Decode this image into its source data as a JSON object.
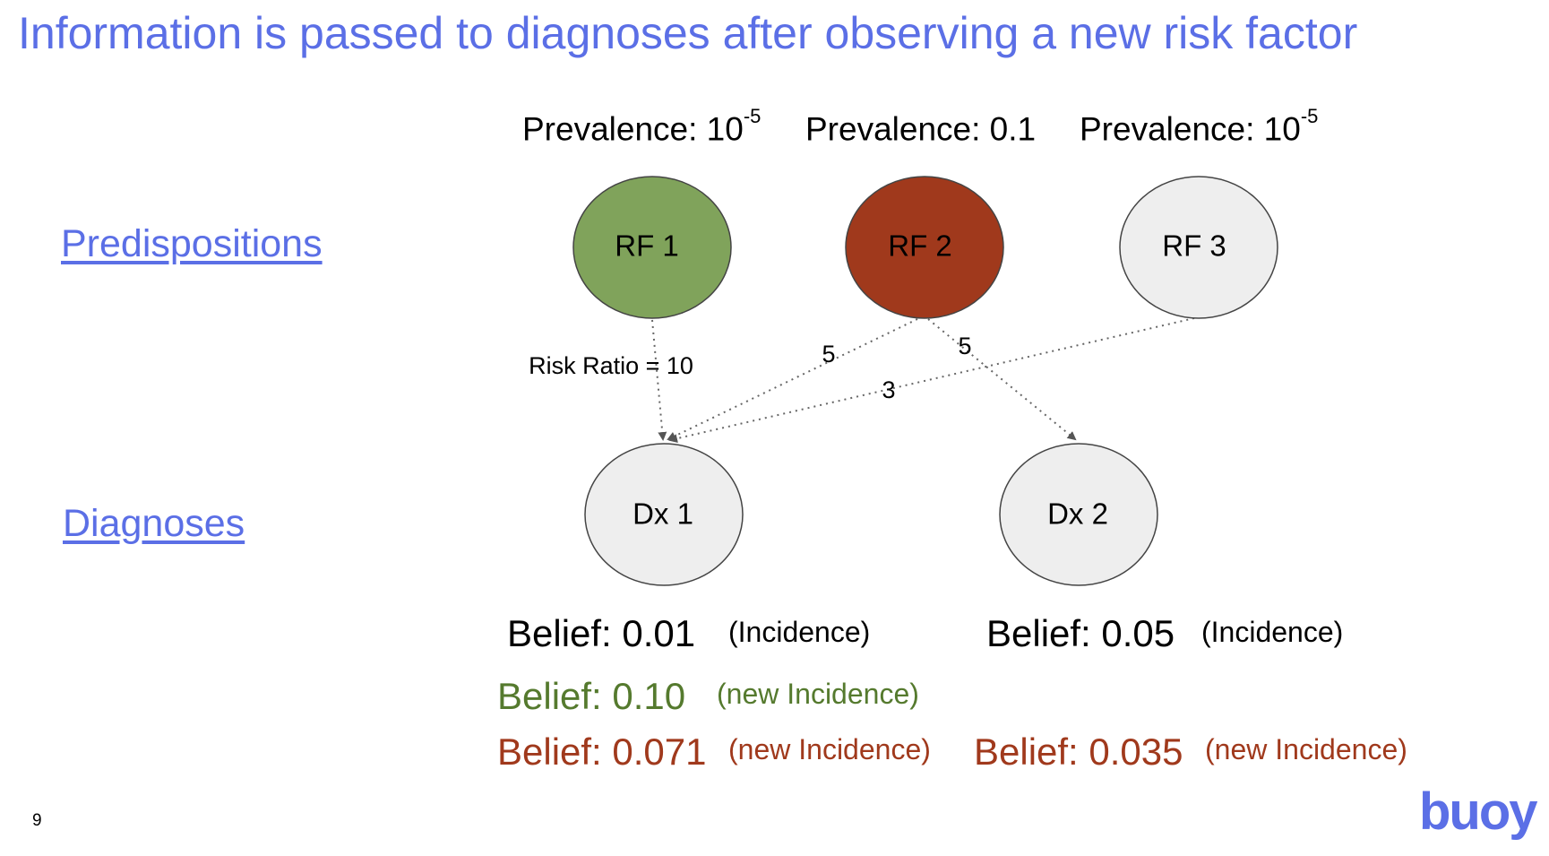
{
  "title": "Information is passed to diagnoses after observing a new risk factor",
  "sections": {
    "predispositions": "Predispositions",
    "diagnoses": "Diagnoses"
  },
  "prevalence": [
    {
      "label": "Prevalence: 10",
      "sup": "-5"
    },
    {
      "label": "Prevalence: 0.1",
      "sup": ""
    },
    {
      "label": "Prevalence: 10",
      "sup": "-5"
    }
  ],
  "nodes": {
    "rf1": {
      "label": "RF 1",
      "color": "#80a35b"
    },
    "rf2": {
      "label": "RF 2",
      "color": "#a0391c"
    },
    "rf3": {
      "label": "RF 3",
      "color": "#eeeeee"
    },
    "dx1": {
      "label": "Dx 1",
      "color": "#eeeeee"
    },
    "dx2": {
      "label": "Dx 2",
      "color": "#eeeeee"
    }
  },
  "edges": {
    "rf1_dx1": "Risk Ratio = 10",
    "rf2_dx1": "5",
    "rf2_dx2": "5",
    "rf3_dx1": "3"
  },
  "beliefs": {
    "dx1": {
      "value": "Belief: 0.01",
      "note": "(Incidence)"
    },
    "dx2": {
      "value": "Belief: 0.05",
      "note": "(Incidence)"
    },
    "dx1_green": {
      "value": "Belief: 0.10",
      "note": "(new Incidence)"
    },
    "dx1_red": {
      "value": "Belief: 0.071",
      "note": "(new Incidence)"
    },
    "dx2_red": {
      "value": "Belief: 0.035",
      "note": "(new Incidence)"
    }
  },
  "colors": {
    "accent": "#5b6fe6",
    "green": "#557a2e",
    "red": "#a0391c"
  },
  "page_number": "9",
  "logo": "buoy"
}
